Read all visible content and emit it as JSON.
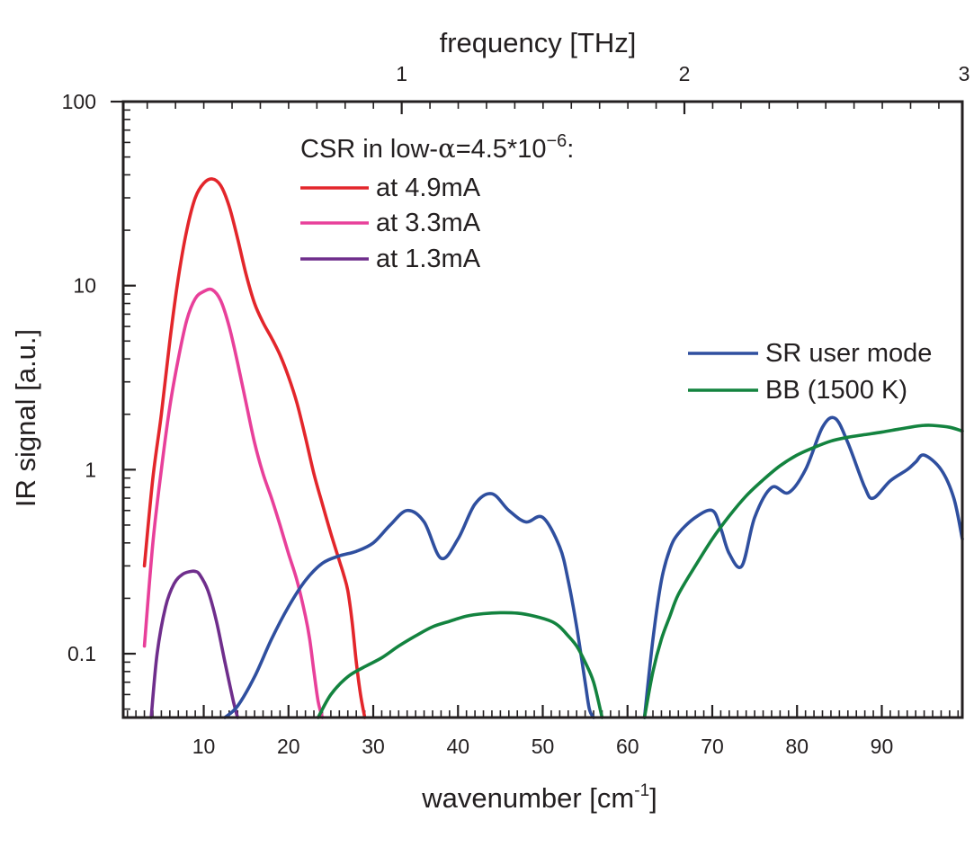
{
  "chart_data": {
    "type": "line",
    "xlabel": "wavenumber [cm",
    "xlabel_sup": "-1",
    "xlabel_end": "]",
    "x2label": "frequency [THz]",
    "ylabel": "IR signal [a.u.]",
    "xlim": [
      0.5,
      99.5
    ],
    "ylim": [
      0.045,
      100
    ],
    "yscale": "log",
    "x_ticks": [
      10,
      20,
      30,
      40,
      50,
      60,
      70,
      80,
      90
    ],
    "x_tick_labels": [
      "10",
      "20",
      "30",
      "40",
      "50",
      "60",
      "70",
      "80",
      "90"
    ],
    "x2_ticks": [
      1,
      2,
      3
    ],
    "x2_tick_labels": [
      "1",
      "2",
      "3"
    ],
    "y_ticks": [
      0.1,
      1,
      10,
      100
    ],
    "y_tick_labels": [
      "0.1",
      "1",
      "10",
      "100"
    ],
    "grid": false,
    "legend_title": {
      "prefix": "CSR in low-",
      "alpha": "α",
      "middle": "=4.5*10",
      "exponent": "−6",
      "suffix": ":"
    },
    "legend_upper_placement": "top-left",
    "legend_lower_placement": "middle-right",
    "colors": {
      "axis": "#231f20",
      "csr_4_9": "#e3262b",
      "csr_3_3": "#e8409a",
      "csr_1_3": "#6f2e8c",
      "sr_user": "#2f4f9f",
      "bb_1500": "#13833f"
    },
    "series": [
      {
        "name": "at 4.9mA",
        "color": "#e3262b",
        "group": "upper",
        "x": [
          3,
          4,
          5,
          6,
          7,
          8,
          9,
          10,
          11,
          12,
          13,
          14,
          15,
          16,
          17,
          18,
          19,
          20,
          21,
          22,
          23,
          24,
          25,
          26,
          26.5,
          27,
          27.5,
          28,
          28.5,
          29
        ],
        "y": [
          0.3,
          0.9,
          2.0,
          5.0,
          11.0,
          20.0,
          30.0,
          36.0,
          38.0,
          35.0,
          27.0,
          18.0,
          11.5,
          8.0,
          6.3,
          5.2,
          4.2,
          3.2,
          2.3,
          1.5,
          0.95,
          0.65,
          0.45,
          0.32,
          0.27,
          0.22,
          0.15,
          0.09,
          0.06,
          0.045
        ]
      },
      {
        "name": "at 3.3mA",
        "color": "#e8409a",
        "group": "upper",
        "x": [
          3,
          4,
          5,
          6,
          7,
          8,
          9,
          10,
          11,
          12,
          13,
          14,
          15,
          16,
          17,
          18,
          19,
          20,
          21,
          22,
          22.5,
          23,
          23.5,
          24
        ],
        "y": [
          0.11,
          0.4,
          1.0,
          2.2,
          4.0,
          6.5,
          8.5,
          9.3,
          9.5,
          8.3,
          6.0,
          3.8,
          2.3,
          1.4,
          0.95,
          0.7,
          0.5,
          0.35,
          0.25,
          0.16,
          0.12,
          0.08,
          0.055,
          0.045
        ]
      },
      {
        "name": "at 1.3mA",
        "color": "#6f2e8c",
        "group": "upper",
        "x": [
          3.8,
          4.5,
          5.5,
          6.5,
          7.5,
          8.5,
          9,
          9.5,
          10.5,
          11.5,
          12.5,
          13.5,
          14
        ],
        "y": [
          0.045,
          0.1,
          0.18,
          0.24,
          0.27,
          0.28,
          0.28,
          0.27,
          0.22,
          0.15,
          0.09,
          0.055,
          0.045
        ]
      },
      {
        "name": "SR user mode",
        "color": "#2f4f9f",
        "group": "lower",
        "x": [
          12.5,
          14,
          16,
          18,
          20,
          22,
          24,
          26,
          28,
          30,
          32,
          34,
          36,
          38,
          40,
          42,
          44,
          46,
          48,
          50,
          52,
          53,
          54,
          55,
          55.5,
          56,
          62,
          63,
          64,
          65,
          66,
          68,
          70,
          71,
          72,
          73.5,
          75,
          77,
          79,
          81,
          83,
          84.5,
          86,
          88,
          89,
          91,
          93,
          94,
          95,
          97,
          98.5,
          99.5
        ],
        "y": [
          0.045,
          0.052,
          0.075,
          0.12,
          0.18,
          0.25,
          0.31,
          0.34,
          0.36,
          0.4,
          0.5,
          0.6,
          0.52,
          0.33,
          0.42,
          0.65,
          0.74,
          0.6,
          0.52,
          0.55,
          0.38,
          0.25,
          0.14,
          0.07,
          0.05,
          0.045,
          0.045,
          0.12,
          0.25,
          0.37,
          0.45,
          0.55,
          0.6,
          0.48,
          0.35,
          0.3,
          0.55,
          0.8,
          0.75,
          1.0,
          1.7,
          1.9,
          1.4,
          0.8,
          0.7,
          0.87,
          1.0,
          1.1,
          1.2,
          1.0,
          0.7,
          0.42
        ]
      },
      {
        "name": "BB (1500 K)",
        "color": "#13833f",
        "group": "lower",
        "x": [
          23.5,
          25,
          27,
          29,
          31,
          33,
          35,
          37,
          39,
          41,
          43,
          45,
          47,
          49,
          51,
          52,
          53,
          54,
          55,
          56,
          57,
          62,
          63,
          64,
          65,
          66,
          68,
          70,
          72,
          74,
          76,
          78,
          80,
          82,
          84,
          86,
          88,
          90,
          92,
          94,
          95,
          96,
          98,
          99.5
        ],
        "y": [
          0.045,
          0.06,
          0.075,
          0.085,
          0.095,
          0.11,
          0.125,
          0.14,
          0.15,
          0.16,
          0.165,
          0.167,
          0.166,
          0.16,
          0.15,
          0.14,
          0.125,
          0.11,
          0.09,
          0.07,
          0.045,
          0.045,
          0.08,
          0.12,
          0.16,
          0.21,
          0.3,
          0.42,
          0.56,
          0.72,
          0.88,
          1.05,
          1.2,
          1.32,
          1.43,
          1.5,
          1.55,
          1.6,
          1.66,
          1.72,
          1.74,
          1.74,
          1.7,
          1.62
        ]
      }
    ]
  }
}
